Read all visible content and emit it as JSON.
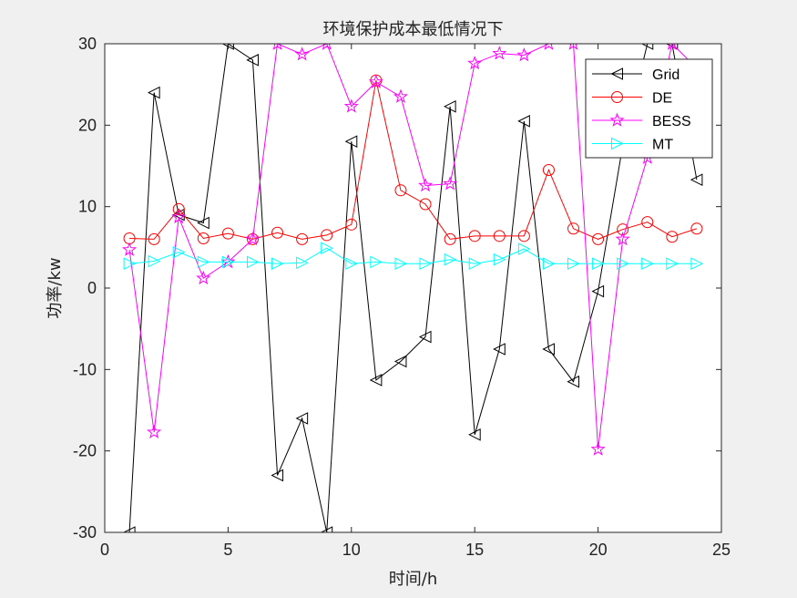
{
  "chart_data": {
    "type": "line",
    "title": "环境保护成本最低情况下",
    "xlabel": "时间/h",
    "ylabel": "功率/kw",
    "xlim": [
      0,
      25
    ],
    "ylim": [
      -30,
      30
    ],
    "xticks": [
      0,
      5,
      10,
      15,
      20,
      25
    ],
    "yticks": [
      -30,
      -20,
      -10,
      0,
      10,
      20,
      30
    ],
    "grid": false,
    "legend_position": "top-right",
    "x": [
      1,
      2,
      3,
      4,
      5,
      6,
      7,
      8,
      9,
      10,
      11,
      12,
      13,
      14,
      15,
      16,
      17,
      18,
      19,
      20,
      21,
      22,
      23,
      24
    ],
    "series": [
      {
        "name": "Grid",
        "color": "#000000",
        "marker": "triangle-left",
        "values": [
          -30,
          24,
          9,
          8,
          30,
          28,
          -23,
          -16,
          -30,
          18,
          -11.3,
          -9,
          -6,
          22.3,
          -18,
          -7.5,
          20.5,
          -7.5,
          -11.5,
          -0.4,
          17.5,
          30,
          30,
          13.3
        ]
      },
      {
        "name": "DE",
        "color": "#ff0000",
        "marker": "circle",
        "values": [
          6.1,
          6,
          9.7,
          6.1,
          6.7,
          6,
          6.8,
          6,
          6.5,
          7.8,
          25.5,
          12,
          10.3,
          6,
          6.4,
          6.4,
          6.4,
          14.5,
          7.3,
          6,
          7.2,
          8.1,
          6.3,
          7.3
        ]
      },
      {
        "name": "BESS",
        "color": "#ff00ff",
        "marker": "star",
        "values": [
          4.7,
          -17.7,
          8.7,
          1.2,
          3.2,
          6,
          30,
          28.7,
          30,
          22.3,
          25.3,
          23.5,
          12.6,
          12.8,
          27.6,
          28.8,
          28.6,
          30,
          30,
          -19.8,
          6,
          16,
          30,
          27
        ]
      },
      {
        "name": "MT",
        "color": "#00ffff",
        "marker": "triangle-right",
        "values": [
          3,
          3.3,
          4.4,
          3.2,
          3.2,
          3.2,
          3,
          3.1,
          4.9,
          3,
          3.2,
          3,
          3,
          3.5,
          3,
          3.5,
          4.8,
          3,
          3,
          3,
          3,
          3,
          3,
          3
        ]
      }
    ]
  }
}
